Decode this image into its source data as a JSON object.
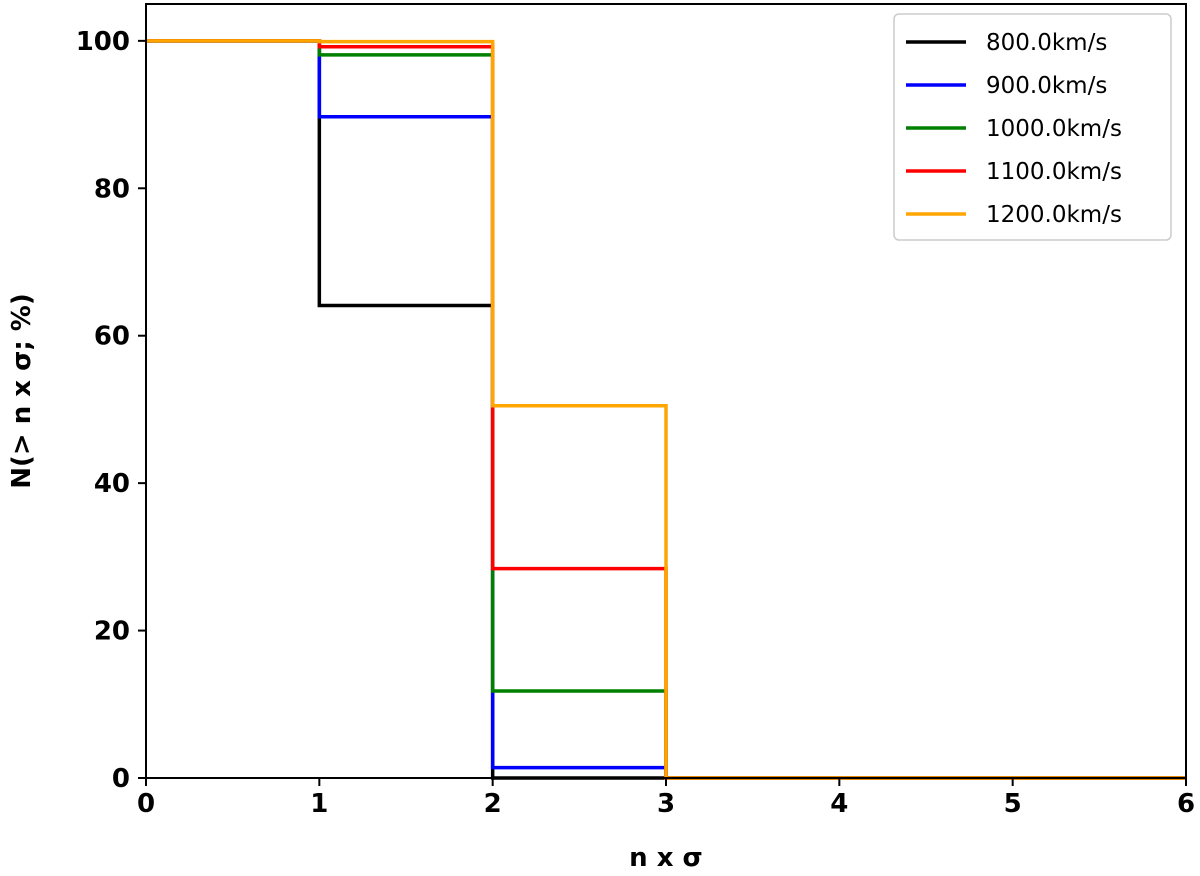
{
  "chart_data": {
    "type": "line",
    "drawstyle": "steps-post",
    "title": "",
    "xlabel": "n x σ",
    "ylabel": "N(> n x σ; %)",
    "xlim": [
      0,
      6
    ],
    "ylim": [
      0,
      105
    ],
    "xticks": [
      "0",
      "1",
      "2",
      "3",
      "4",
      "5",
      "6"
    ],
    "yticks": [
      "0",
      "20",
      "40",
      "60",
      "80",
      "100"
    ],
    "grid": false,
    "legend_position": "top-right",
    "x": [
      0,
      1,
      2,
      3,
      4,
      5,
      6
    ],
    "series": [
      {
        "name": "800.0km/s",
        "color": "#000000",
        "values": [
          100,
          64.1,
          0,
          0,
          0,
          0,
          0
        ]
      },
      {
        "name": "900.0km/s",
        "color": "#0000ff",
        "values": [
          100,
          89.7,
          1.4,
          0,
          0,
          0,
          0
        ]
      },
      {
        "name": "1000.0km/s",
        "color": "#008000",
        "values": [
          100,
          98.1,
          11.8,
          0,
          0,
          0,
          0
        ]
      },
      {
        "name": "1100.0km/s",
        "color": "#ff0000",
        "values": [
          100,
          99.2,
          28.4,
          0,
          0,
          0,
          0
        ]
      },
      {
        "name": "1200.0km/s",
        "color": "#ffa500",
        "values": [
          100,
          99.9,
          50.5,
          0,
          0,
          0,
          0
        ]
      }
    ]
  }
}
